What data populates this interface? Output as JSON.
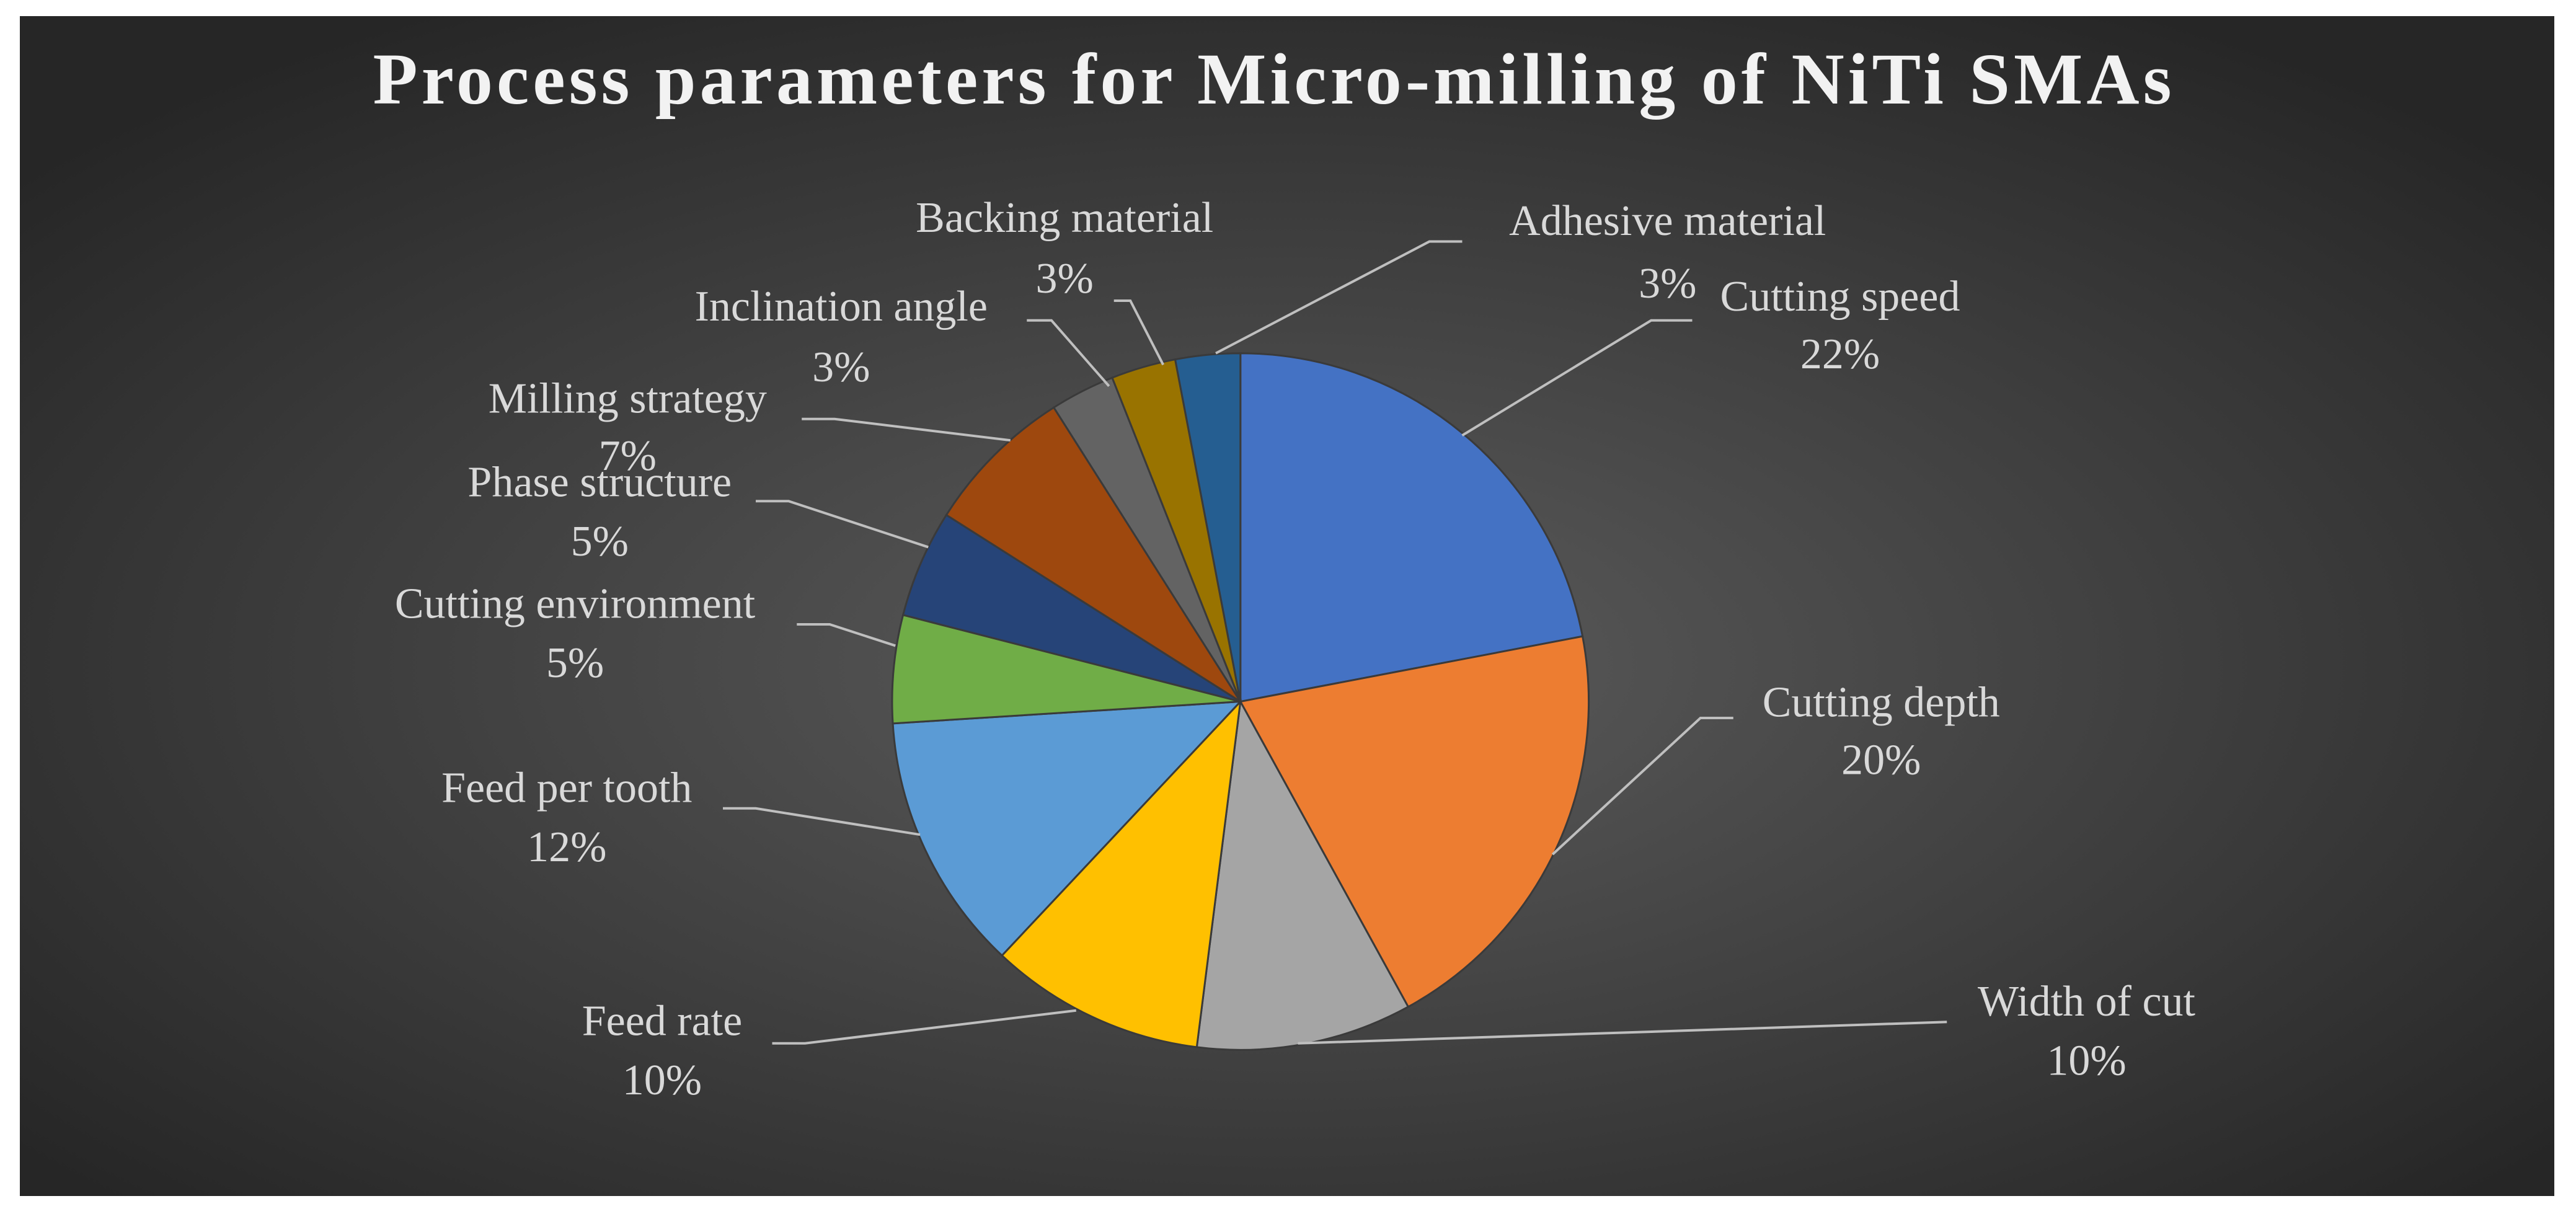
{
  "chart_data": {
    "type": "pie",
    "title": "Process parameters for Micro-milling of NiTi SMAs",
    "categories": [
      "Cutting speed",
      "Cutting depth",
      "Width of cut",
      "Feed rate",
      "Feed per tooth",
      "Cutting environment",
      "Phase structure",
      "Milling strategy",
      "Inclination angle",
      "Backing material",
      "Adhesive material"
    ],
    "values": [
      22,
      20,
      10,
      10,
      12,
      5,
      5,
      7,
      3,
      3,
      3
    ],
    "value_labels": [
      "22%",
      "20%",
      "10%",
      "10%",
      "12%",
      "5%",
      "5%",
      "7%",
      "3%",
      "3%",
      "3%"
    ],
    "colors": [
      "#4472c4",
      "#ed7d31",
      "#a5a5a5",
      "#ffc000",
      "#5b9bd5",
      "#70ad47",
      "#264478",
      "#9e480e",
      "#636363",
      "#997300",
      "#255e91"
    ]
  }
}
